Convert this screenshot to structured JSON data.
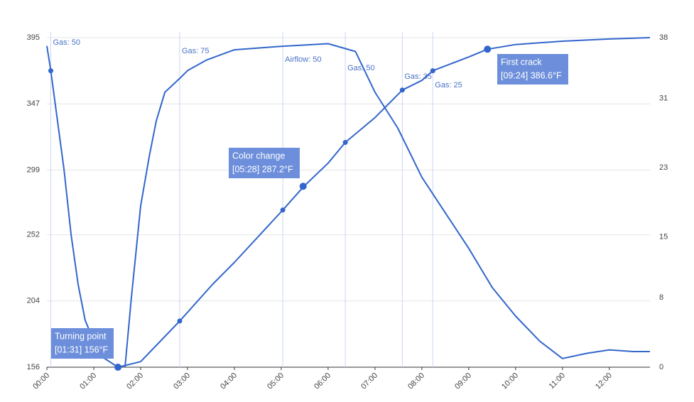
{
  "chart_data": {
    "type": "line",
    "xlim": [
      0,
      772
    ],
    "xticks": [
      {
        "value": 0,
        "label": "00:00"
      },
      {
        "value": 60,
        "label": "01:00"
      },
      {
        "value": 120,
        "label": "02:00"
      },
      {
        "value": 180,
        "label": "03:00"
      },
      {
        "value": 240,
        "label": "04:00"
      },
      {
        "value": 300,
        "label": "05:00"
      },
      {
        "value": 360,
        "label": "06:00"
      },
      {
        "value": 420,
        "label": "07:00"
      },
      {
        "value": 480,
        "label": "08:00"
      },
      {
        "value": 540,
        "label": "09:00"
      },
      {
        "value": 600,
        "label": "10:00"
      },
      {
        "value": 660,
        "label": "11:00"
      },
      {
        "value": 720,
        "label": "12:00"
      }
    ],
    "ylim": [
      156,
      395
    ],
    "yticks": [
      156,
      204,
      252,
      299,
      347,
      395
    ],
    "y2lim": [
      0,
      38
    ],
    "y2ticks": [
      0,
      8,
      15,
      23,
      31,
      38
    ],
    "grid": true,
    "series": [
      {
        "color": "#3366cc",
        "x": [
          0,
          5,
          22,
          31,
          40,
          49,
          60,
          72,
          91,
          120,
          170,
          212,
          240,
          302,
          329,
          360,
          382,
          420,
          455,
          480,
          494,
          540,
          564,
          600,
          660,
          720,
          772
        ],
        "values": [
          389,
          371,
          299,
          252,
          216,
          190,
          175,
          163,
          156,
          160,
          189.5,
          216,
          232,
          270,
          287.2,
          304,
          319,
          337,
          357,
          364,
          371,
          381,
          386.6,
          390,
          392.4,
          394,
          395
        ]
      },
      {
        "color": "#3366cc",
        "axis": "y2",
        "x": [
          100,
          108,
          120,
          131,
          140,
          151,
          170,
          180,
          204,
          240,
          300,
          360,
          395,
          420,
          449,
          480,
          510,
          540,
          570,
          600,
          631,
          660,
          691,
          720,
          751,
          772
        ],
        "values": [
          0,
          7.9,
          18.6,
          24.3,
          28.4,
          31.7,
          33.3,
          34.2,
          35.4,
          36.6,
          37,
          37.3,
          36.4,
          31.7,
          27.6,
          21.9,
          17.8,
          13.7,
          9.2,
          5.9,
          3.0,
          1.0,
          1.6,
          2.0,
          1.8,
          1.8
        ]
      }
    ],
    "events": [
      {
        "label": "Gas: 50",
        "x": 5,
        "value": 371
      },
      {
        "label": "Gas: 75",
        "x": 170,
        "value": 189.5
      },
      {
        "label": "Airflow: 50",
        "x": 302,
        "value": 270
      },
      {
        "label": "Gas: 50",
        "x": 382,
        "value": 319
      },
      {
        "label": "Gas: 35",
        "x": 455,
        "value": 357
      },
      {
        "label": "Gas: 25",
        "x": 494,
        "value": 371
      }
    ],
    "callouts": [
      {
        "title": "Turning point",
        "label": "[01:31] 156°F",
        "x": 91,
        "value": 156
      },
      {
        "title": "Color change",
        "label": "[05:28] 287.2°F",
        "x": 328,
        "value": 287.2
      },
      {
        "title": "First crack",
        "label": "[09:24] 386.6°F",
        "x": 564,
        "value": 386.6
      }
    ]
  }
}
